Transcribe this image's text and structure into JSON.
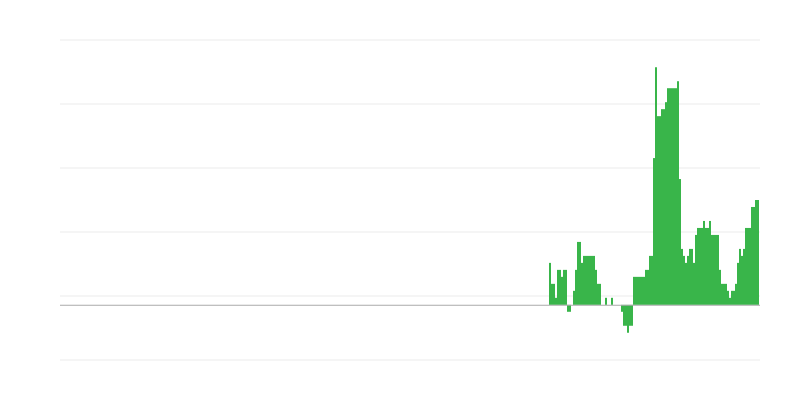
{
  "chart_data": {
    "type": "bar",
    "title": "",
    "xlabel": "",
    "ylabel": "",
    "grid": true,
    "legend": "none",
    "bar_color": "#39b54a",
    "baseline_color": "#aaaaaa",
    "grid_color": "#ebebeb",
    "ylim": [
      -7.9,
      37.9
    ],
    "values": [
      6,
      3,
      3,
      1,
      5,
      5,
      4,
      5,
      5,
      -1,
      -1,
      0,
      2,
      5,
      9,
      9,
      6,
      7,
      7,
      7,
      7,
      7,
      7,
      5,
      3,
      3,
      0,
      0,
      1,
      0,
      0,
      1,
      0,
      0,
      0,
      0,
      -1,
      -3,
      -3,
      -4,
      -3,
      -3,
      4,
      4,
      4,
      4,
      4,
      4,
      5,
      5,
      7,
      7,
      21,
      34,
      27,
      27,
      28,
      28,
      29,
      31,
      31,
      31,
      31,
      31,
      32,
      18,
      8,
      7,
      6,
      7,
      8,
      8,
      6,
      10,
      11,
      11,
      11,
      12,
      11,
      11,
      12,
      10,
      10,
      10,
      10,
      5,
      3,
      3,
      3,
      2,
      1,
      2,
      2,
      3,
      6,
      8,
      7,
      8,
      11,
      11,
      11,
      14,
      14,
      15,
      15
    ]
  }
}
